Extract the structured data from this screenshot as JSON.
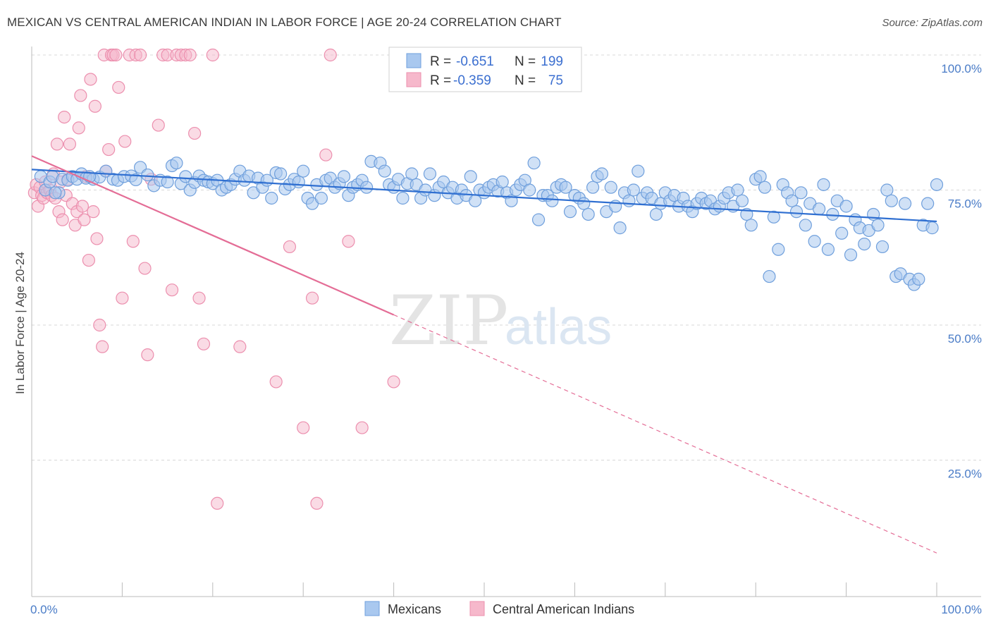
{
  "title": "MEXICAN VS CENTRAL AMERICAN INDIAN IN LABOR FORCE | AGE 20-24 CORRELATION CHART",
  "source": "Source: ZipAtlas.com",
  "watermark": {
    "zip": "ZIP",
    "atlas": "atlas"
  },
  "colors": {
    "blue_fill": "#a9c8ef",
    "blue_stroke": "#6f9fdc",
    "blue_line": "#2f6fd1",
    "pink_fill": "#f6b8cb",
    "pink_stroke": "#ec8fae",
    "pink_line": "#e46d96",
    "grid": "#d8d8d8",
    "tick_text": "#4a7cc7"
  },
  "legend": {
    "rows": [
      {
        "r_label": "R =",
        "r_value": "-0.651",
        "n_label": "N =",
        "n_value": "199"
      },
      {
        "r_label": "R =",
        "r_value": "-0.359",
        "n_label": "N =",
        "n_value": "75"
      }
    ]
  },
  "bottom_legend": [
    "Mexicans",
    "Central American Indians"
  ],
  "chart_data": {
    "type": "scatter",
    "title": "MEXICAN VS CENTRAL AMERICAN INDIAN IN LABOR FORCE | AGE 20-24 CORRELATION CHART",
    "xlabel": "",
    "ylabel": "In Labor Force | Age 20-24",
    "xlim": [
      0,
      100
    ],
    "ylim": [
      0,
      100
    ],
    "x_tick_labels": [
      "0.0%",
      "100.0%"
    ],
    "y_ticks": [
      25,
      50,
      75,
      100
    ],
    "y_tick_labels": [
      "25.0%",
      "50.0%",
      "75.0%",
      "100.0%"
    ],
    "grid": true,
    "legend_position": "top-center",
    "series": [
      {
        "name": "Mexicans",
        "r": -0.651,
        "n": 199,
        "trend": {
          "x": [
            0,
            100
          ],
          "y": [
            78.8,
            69.2
          ],
          "dashed_from": null
        },
        "points": [
          [
            1.0,
            77.5
          ],
          [
            1.5,
            75.0
          ],
          [
            2.0,
            76.5
          ],
          [
            2.3,
            77.5
          ],
          [
            3.0,
            74.5
          ],
          [
            3.4,
            77.0
          ],
          [
            4.0,
            76.8
          ],
          [
            4.5,
            77.5
          ],
          [
            5.0,
            77.0
          ],
          [
            5.5,
            78.0
          ],
          [
            6.0,
            77.2
          ],
          [
            6.8,
            77.0
          ],
          [
            7.5,
            77.4
          ],
          [
            8.2,
            78.5
          ],
          [
            9.0,
            77.0
          ],
          [
            9.5,
            76.8
          ],
          [
            10.2,
            77.5
          ],
          [
            11.0,
            77.6
          ],
          [
            11.5,
            76.9
          ],
          [
            12.0,
            79.2
          ],
          [
            12.8,
            77.8
          ],
          [
            13.5,
            75.8
          ],
          [
            14.2,
            76.8
          ],
          [
            15.0,
            76.5
          ],
          [
            15.5,
            79.5
          ],
          [
            16.0,
            80.0
          ],
          [
            16.5,
            76.2
          ],
          [
            17.0,
            77.5
          ],
          [
            17.5,
            75.0
          ],
          [
            18.0,
            76.4
          ],
          [
            18.5,
            77.6
          ],
          [
            19.0,
            76.8
          ],
          [
            19.5,
            76.5
          ],
          [
            20.0,
            76.2
          ],
          [
            20.5,
            76.8
          ],
          [
            21.0,
            75.0
          ],
          [
            21.5,
            75.5
          ],
          [
            22.0,
            76.0
          ],
          [
            22.5,
            77.0
          ],
          [
            23.0,
            78.5
          ],
          [
            23.5,
            76.8
          ],
          [
            24.0,
            77.6
          ],
          [
            24.5,
            74.5
          ],
          [
            25.0,
            77.2
          ],
          [
            25.5,
            75.5
          ],
          [
            26.0,
            76.8
          ],
          [
            26.5,
            73.5
          ],
          [
            27.0,
            78.2
          ],
          [
            27.5,
            78.0
          ],
          [
            28.0,
            75.2
          ],
          [
            28.5,
            76.0
          ],
          [
            29.0,
            77.0
          ],
          [
            29.5,
            76.5
          ],
          [
            30.0,
            78.5
          ],
          [
            30.5,
            73.5
          ],
          [
            31.0,
            72.5
          ],
          [
            31.5,
            76.0
          ],
          [
            32.0,
            73.5
          ],
          [
            32.5,
            76.8
          ],
          [
            33.0,
            77.2
          ],
          [
            33.5,
            75.5
          ],
          [
            34.0,
            76.2
          ],
          [
            34.5,
            77.5
          ],
          [
            35.0,
            74.0
          ],
          [
            35.5,
            75.5
          ],
          [
            36.0,
            76.0
          ],
          [
            36.5,
            76.8
          ],
          [
            37.0,
            75.5
          ],
          [
            37.5,
            80.3
          ],
          [
            38.5,
            80.0
          ],
          [
            39.0,
            78.5
          ],
          [
            39.5,
            76.0
          ],
          [
            40.0,
            75.5
          ],
          [
            40.5,
            77.0
          ],
          [
            41.0,
            73.5
          ],
          [
            41.5,
            76.2
          ],
          [
            42.0,
            78.0
          ],
          [
            42.5,
            76.0
          ],
          [
            43.0,
            73.5
          ],
          [
            43.5,
            75.0
          ],
          [
            44.0,
            78.0
          ],
          [
            44.5,
            74.0
          ],
          [
            45.0,
            75.5
          ],
          [
            45.5,
            76.5
          ],
          [
            46.0,
            74.5
          ],
          [
            46.5,
            75.5
          ],
          [
            47.0,
            73.5
          ],
          [
            47.5,
            75.0
          ],
          [
            48.0,
            74.0
          ],
          [
            48.5,
            77.5
          ],
          [
            49.0,
            73.0
          ],
          [
            49.5,
            75.0
          ],
          [
            50.0,
            74.5
          ],
          [
            50.5,
            75.5
          ],
          [
            51.0,
            76.0
          ],
          [
            51.5,
            74.8
          ],
          [
            52.0,
            76.5
          ],
          [
            52.5,
            74.5
          ],
          [
            53.0,
            73.0
          ],
          [
            53.5,
            75.0
          ],
          [
            54.0,
            76.0
          ],
          [
            54.5,
            76.8
          ],
          [
            55.0,
            75.0
          ],
          [
            55.5,
            80.0
          ],
          [
            56.0,
            69.5
          ],
          [
            56.5,
            74.0
          ],
          [
            57.0,
            74.0
          ],
          [
            57.5,
            73.0
          ],
          [
            58.0,
            75.5
          ],
          [
            58.5,
            76.0
          ],
          [
            59.0,
            75.5
          ],
          [
            59.5,
            71.0
          ],
          [
            60.0,
            74.0
          ],
          [
            60.5,
            73.5
          ],
          [
            61.0,
            72.5
          ],
          [
            61.5,
            70.5
          ],
          [
            62.0,
            75.5
          ],
          [
            62.5,
            77.5
          ],
          [
            63.0,
            78.0
          ],
          [
            63.5,
            71.0
          ],
          [
            64.0,
            75.5
          ],
          [
            64.5,
            72.0
          ],
          [
            65.0,
            68.0
          ],
          [
            65.5,
            74.5
          ],
          [
            66.0,
            73.0
          ],
          [
            66.5,
            75.0
          ],
          [
            67.0,
            78.5
          ],
          [
            67.5,
            73.5
          ],
          [
            68.0,
            74.5
          ],
          [
            68.5,
            73.5
          ],
          [
            69.0,
            70.5
          ],
          [
            69.5,
            72.5
          ],
          [
            70.0,
            74.5
          ],
          [
            70.5,
            73.0
          ],
          [
            71.0,
            74.0
          ],
          [
            71.5,
            72.0
          ],
          [
            72.0,
            73.5
          ],
          [
            72.5,
            72.0
          ],
          [
            73.0,
            71.0
          ],
          [
            73.5,
            72.5
          ],
          [
            74.0,
            73.5
          ],
          [
            74.5,
            72.5
          ],
          [
            75.0,
            73.0
          ],
          [
            75.5,
            71.5
          ],
          [
            76.0,
            72.0
          ],
          [
            76.5,
            73.5
          ],
          [
            77.0,
            74.5
          ],
          [
            77.5,
            72.0
          ],
          [
            78.0,
            75.0
          ],
          [
            78.5,
            73.0
          ],
          [
            79.0,
            70.5
          ],
          [
            79.5,
            68.5
          ],
          [
            80.0,
            77.0
          ],
          [
            80.5,
            77.5
          ],
          [
            81.0,
            75.5
          ],
          [
            81.5,
            59.0
          ],
          [
            82.0,
            70.0
          ],
          [
            82.5,
            64.0
          ],
          [
            83.0,
            76.0
          ],
          [
            83.5,
            74.5
          ],
          [
            84.0,
            73.0
          ],
          [
            84.5,
            71.0
          ],
          [
            85.0,
            74.5
          ],
          [
            85.5,
            68.5
          ],
          [
            86.0,
            72.5
          ],
          [
            86.5,
            65.5
          ],
          [
            87.0,
            71.5
          ],
          [
            87.5,
            76.0
          ],
          [
            88.0,
            64.0
          ],
          [
            88.5,
            70.5
          ],
          [
            89.0,
            73.0
          ],
          [
            89.5,
            67.0
          ],
          [
            90.0,
            72.0
          ],
          [
            90.5,
            63.0
          ],
          [
            91.0,
            69.5
          ],
          [
            91.5,
            68.0
          ],
          [
            92.0,
            65.0
          ],
          [
            92.5,
            67.5
          ],
          [
            93.0,
            70.5
          ],
          [
            93.5,
            68.5
          ],
          [
            94.0,
            64.5
          ],
          [
            94.5,
            75.0
          ],
          [
            95.0,
            73.0
          ],
          [
            95.5,
            59.0
          ],
          [
            96.0,
            59.5
          ],
          [
            96.5,
            72.5
          ],
          [
            97.0,
            58.5
          ],
          [
            97.5,
            57.5
          ],
          [
            98.0,
            58.5
          ],
          [
            98.5,
            68.5
          ],
          [
            99.0,
            72.5
          ],
          [
            99.5,
            68.0
          ],
          [
            100.0,
            76.0
          ],
          [
            2.6,
            74.5
          ],
          [
            6.4,
            77.5
          ]
        ]
      },
      {
        "name": "Central American Indians",
        "r": -0.359,
        "n": 75,
        "trend": {
          "x": [
            0,
            100
          ],
          "y": [
            81.3,
            7.8
          ],
          "dashed_from": 40
        },
        "points": [
          [
            0.3,
            74.5
          ],
          [
            0.5,
            76.0
          ],
          [
            0.7,
            72.0
          ],
          [
            0.9,
            75.5
          ],
          [
            1.1,
            74.0
          ],
          [
            1.3,
            73.5
          ],
          [
            1.5,
            76.5
          ],
          [
            1.7,
            74.5
          ],
          [
            2.0,
            75.0
          ],
          [
            2.2,
            74.0
          ],
          [
            2.4,
            78.0
          ],
          [
            2.6,
            73.5
          ],
          [
            2.8,
            83.5
          ],
          [
            3.0,
            71.0
          ],
          [
            3.2,
            76.5
          ],
          [
            3.4,
            69.5
          ],
          [
            3.6,
            88.5
          ],
          [
            3.8,
            74.0
          ],
          [
            4.0,
            77.0
          ],
          [
            4.2,
            83.5
          ],
          [
            4.5,
            72.5
          ],
          [
            4.8,
            68.5
          ],
          [
            5.0,
            71.0
          ],
          [
            5.2,
            86.5
          ],
          [
            5.4,
            92.5
          ],
          [
            5.6,
            72.0
          ],
          [
            5.8,
            69.5
          ],
          [
            6.0,
            77.5
          ],
          [
            6.3,
            62.0
          ],
          [
            6.5,
            95.5
          ],
          [
            6.8,
            71.0
          ],
          [
            7.0,
            90.5
          ],
          [
            7.2,
            66.0
          ],
          [
            7.5,
            50.0
          ],
          [
            7.8,
            46.0
          ],
          [
            8.0,
            100.0
          ],
          [
            8.2,
            78.5
          ],
          [
            8.5,
            82.5
          ],
          [
            8.8,
            100.0
          ],
          [
            9.0,
            100.0
          ],
          [
            9.3,
            100.0
          ],
          [
            9.6,
            94.0
          ],
          [
            10.0,
            55.0
          ],
          [
            10.3,
            84.0
          ],
          [
            10.8,
            100.0
          ],
          [
            11.2,
            65.5
          ],
          [
            11.5,
            100.0
          ],
          [
            12.0,
            100.0
          ],
          [
            12.5,
            60.5
          ],
          [
            12.8,
            44.5
          ],
          [
            13.2,
            77.0
          ],
          [
            14.0,
            87.0
          ],
          [
            14.5,
            100.0
          ],
          [
            15.0,
            100.0
          ],
          [
            15.5,
            56.5
          ],
          [
            16.0,
            100.0
          ],
          [
            16.5,
            100.0
          ],
          [
            17.0,
            100.0
          ],
          [
            17.5,
            100.0
          ],
          [
            18.0,
            85.5
          ],
          [
            18.5,
            55.0
          ],
          [
            19.0,
            46.5
          ],
          [
            20.0,
            100.0
          ],
          [
            20.5,
            17.0
          ],
          [
            23.0,
            46.0
          ],
          [
            27.0,
            39.5
          ],
          [
            28.5,
            64.5
          ],
          [
            30.0,
            31.0
          ],
          [
            31.0,
            55.0
          ],
          [
            31.5,
            17.0
          ],
          [
            32.5,
            81.5
          ],
          [
            33.0,
            100.0
          ],
          [
            35.0,
            65.5
          ],
          [
            36.5,
            31.0
          ],
          [
            40.0,
            39.5
          ]
        ]
      }
    ]
  }
}
